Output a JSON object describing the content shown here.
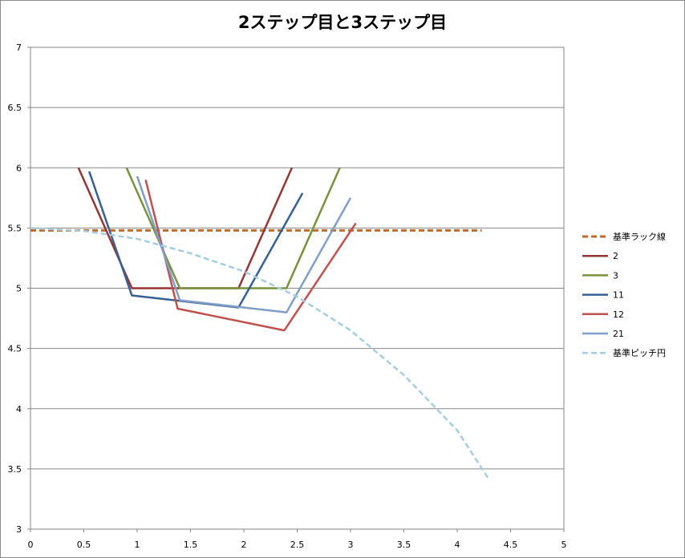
{
  "chart_data": {
    "type": "line",
    "title": "2ステップ目と3ステップ目",
    "xlabel": "",
    "ylabel": "",
    "xlim": [
      0,
      5
    ],
    "ylim": [
      3,
      7
    ],
    "x_ticks": [
      "0",
      "0.5",
      "1",
      "1.5",
      "2",
      "2.5",
      "3",
      "3.5",
      "4",
      "4.5",
      "5"
    ],
    "y_ticks": [
      "3",
      "3.5",
      "4",
      "4.5",
      "5",
      "5.5",
      "6",
      "6.5",
      "7"
    ],
    "grid": "horizontal",
    "legend_position": "right",
    "series": [
      {
        "name": "基準ラック線",
        "color": "#c0692b",
        "dashed": true,
        "width": 3,
        "points": [
          [
            0,
            5.48
          ],
          [
            4.23,
            5.48
          ]
        ]
      },
      {
        "name": "2",
        "color": "#963634",
        "dashed": false,
        "width": 2.5,
        "points": [
          [
            0.45,
            6.0
          ],
          [
            0.95,
            5.0
          ],
          [
            1.95,
            5.0
          ],
          [
            2.45,
            6.0
          ]
        ]
      },
      {
        "name": "3",
        "color": "#77933c",
        "dashed": false,
        "width": 2.5,
        "points": [
          [
            0.9,
            6.0
          ],
          [
            1.4,
            5.0
          ],
          [
            2.4,
            5.0
          ],
          [
            2.9,
            6.0
          ]
        ]
      },
      {
        "name": "11",
        "color": "#376092",
        "dashed": false,
        "width": 2.5,
        "points": [
          [
            0.55,
            5.97
          ],
          [
            0.95,
            4.94
          ],
          [
            1.95,
            4.84
          ],
          [
            2.55,
            5.79
          ]
        ]
      },
      {
        "name": "12",
        "color": "#c0504d",
        "dashed": false,
        "width": 2.5,
        "points": [
          [
            1.08,
            5.9
          ],
          [
            1.38,
            4.83
          ],
          [
            2.38,
            4.65
          ],
          [
            3.05,
            5.54
          ]
        ]
      },
      {
        "name": "21",
        "color": "#7f9ec8",
        "dashed": false,
        "width": 2.5,
        "points": [
          [
            1.0,
            5.93
          ],
          [
            1.4,
            4.9
          ],
          [
            2.4,
            4.8
          ],
          [
            3.0,
            5.75
          ]
        ]
      },
      {
        "name": "基準ピッチ円",
        "color": "#a5cde0",
        "dashed": true,
        "width": 2.5,
        "points": [
          [
            0,
            5.5
          ],
          [
            0.5,
            5.475
          ],
          [
            1.0,
            5.41
          ],
          [
            1.5,
            5.29
          ],
          [
            2.0,
            5.14
          ],
          [
            2.5,
            4.93
          ],
          [
            3.0,
            4.65
          ],
          [
            3.5,
            4.28
          ],
          [
            4.0,
            3.82
          ],
          [
            4.3,
            3.41
          ]
        ]
      }
    ]
  }
}
